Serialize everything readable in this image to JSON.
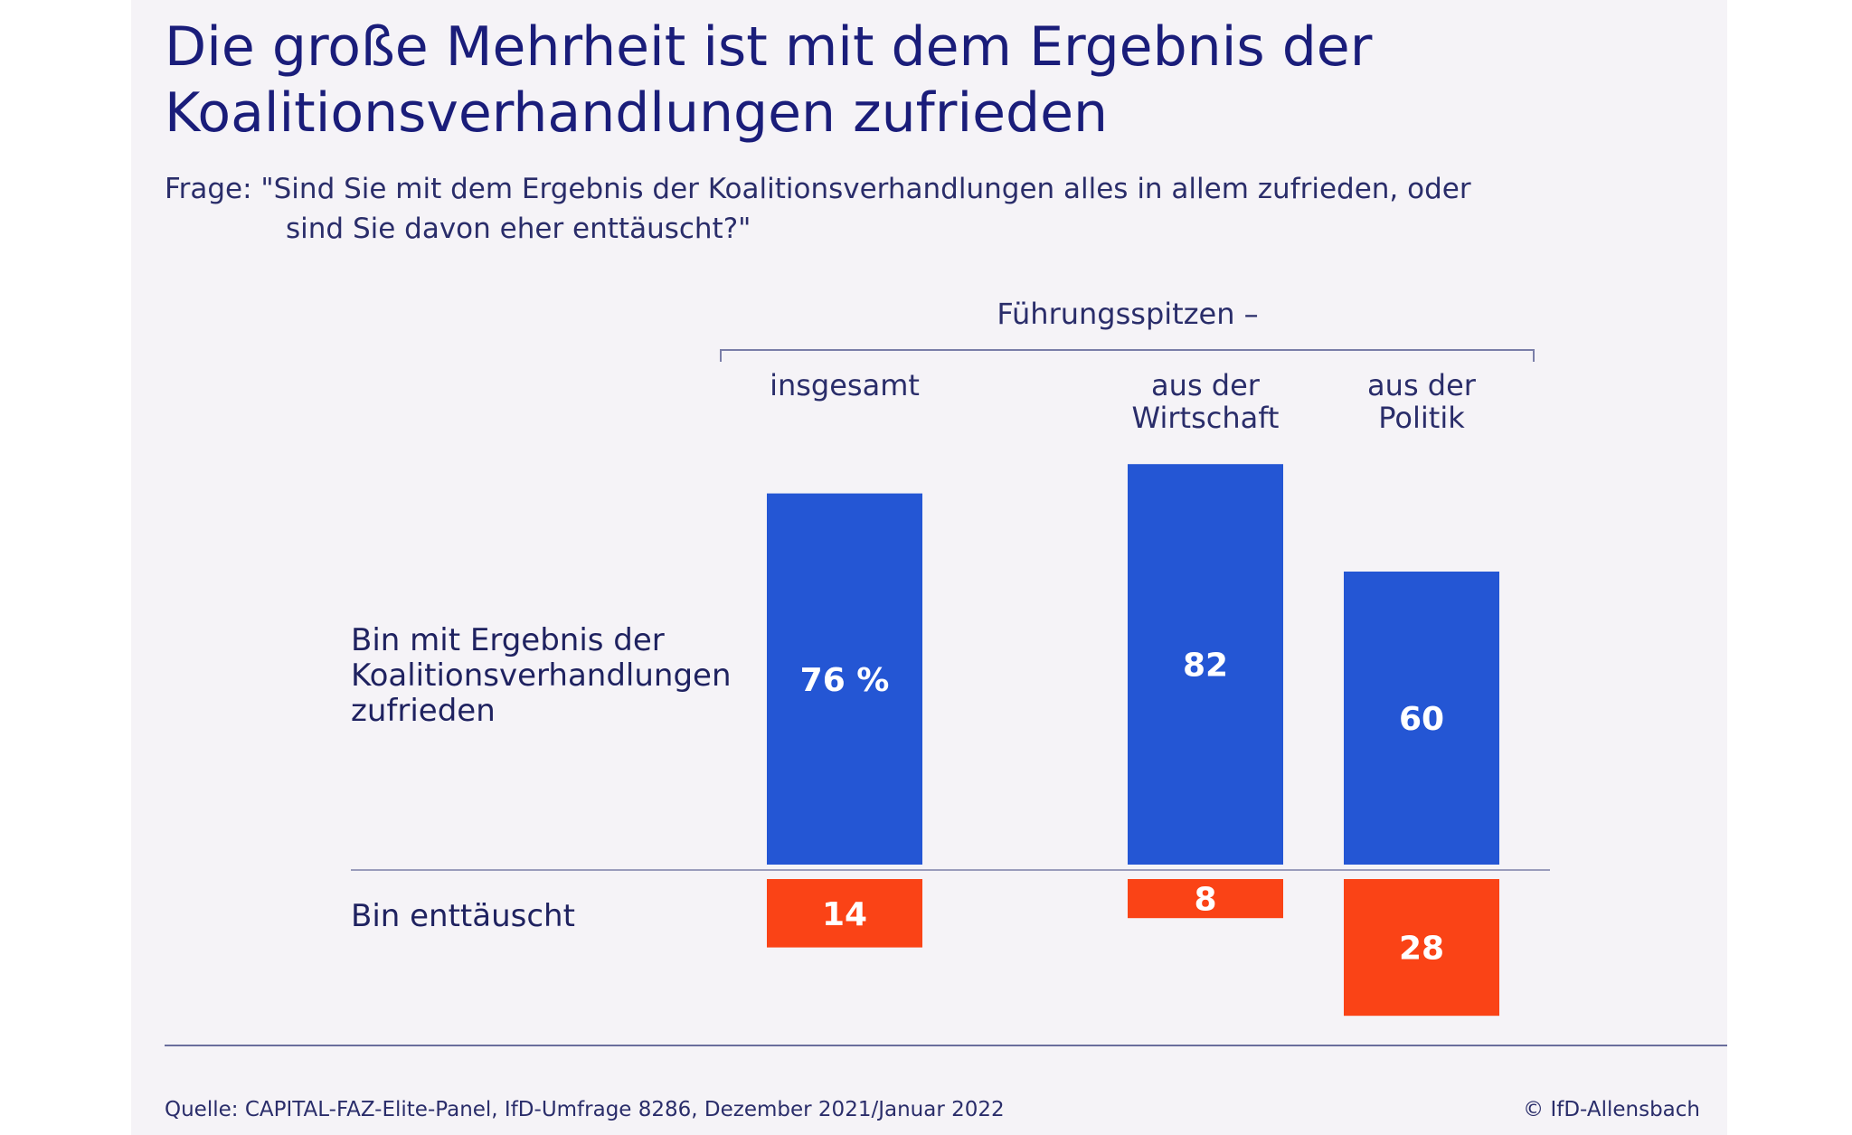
{
  "title_lines": [
    "Die große Mehrheit ist mit dem Ergebnis der",
    "Koalitionsverhandlungen zufrieden"
  ],
  "question_lines": [
    "Frage: \"Sind Sie mit dem Ergebnis der Koalitionsverhandlungen alles in allem zufrieden, oder",
    "sind Sie davon eher enttäuscht?\""
  ],
  "group_header": "Führungsspitzen –",
  "source": "Quelle: CAPITAL-FAZ-Elite-Panel, IfD-Umfrage 8286, Dezember 2021/Januar 2022",
  "copyright": "© IfD-Allensbach",
  "colors": {
    "zufrieden": "#2456d4",
    "enttaeuscht": "#fa4316",
    "text": "#1f2260",
    "rule": "#7a7ea8",
    "background": "#f5f3f7"
  },
  "chart_data": {
    "type": "bar",
    "categories": [
      [
        "insgesamt"
      ],
      [
        "aus der",
        "Wirtschaft"
      ],
      [
        "aus der",
        "Politik"
      ]
    ],
    "unit": "%",
    "series": [
      {
        "label_lines": [
          "Bin mit Ergebnis der",
          "Koalitionsverhandlungen",
          "zufrieden"
        ],
        "values": [
          76,
          82,
          60
        ],
        "value_labels": [
          "76 %",
          "82",
          "60"
        ],
        "direction": "up"
      },
      {
        "label_lines": [
          "Bin enttäuscht"
        ],
        "values": [
          14,
          8,
          28
        ],
        "value_labels": [
          "14",
          "8",
          "28"
        ],
        "direction": "down"
      }
    ]
  }
}
